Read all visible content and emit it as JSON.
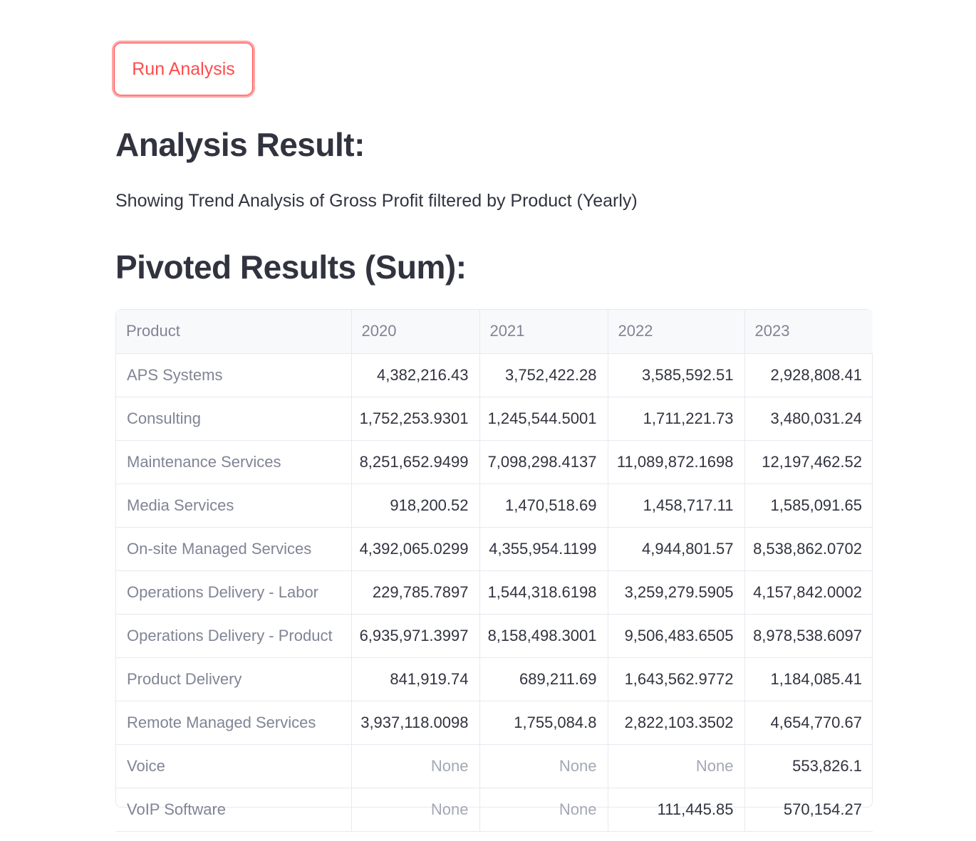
{
  "run_button": {
    "label": "Run Analysis"
  },
  "analysis": {
    "heading": "Analysis Result:",
    "description": "Showing Trend Analysis of Gross Profit filtered by Product (Yearly)"
  },
  "pivot": {
    "heading": "Pivoted Results (Sum):",
    "columns": [
      "Product",
      "2020",
      "2021",
      "2022",
      "2023"
    ],
    "rows": [
      [
        "APS Systems",
        "4,382,216.43",
        "3,752,422.28",
        "3,585,592.51",
        "2,928,808.41"
      ],
      [
        "Consulting",
        "1,752,253.9301",
        "1,245,544.5001",
        "1,711,221.73",
        "3,480,031.24"
      ],
      [
        "Maintenance Services",
        "8,251,652.9499",
        "7,098,298.4137",
        "11,089,872.1698",
        "12,197,462.52"
      ],
      [
        "Media Services",
        "918,200.52",
        "1,470,518.69",
        "1,458,717.11",
        "1,585,091.65"
      ],
      [
        "On-site Managed Services",
        "4,392,065.0299",
        "4,355,954.1199",
        "4,944,801.57",
        "8,538,862.0702"
      ],
      [
        "Operations Delivery - Labor",
        "229,785.7897",
        "1,544,318.6198",
        "3,259,279.5905",
        "4,157,842.0002"
      ],
      [
        "Operations Delivery - Product",
        "6,935,971.3997",
        "8,158,498.3001",
        "9,506,483.6505",
        "8,978,538.6097"
      ],
      [
        "Product Delivery",
        "841,919.74",
        "689,211.69",
        "1,643,562.9772",
        "1,184,085.41"
      ],
      [
        "Remote Managed Services",
        "3,937,118.0098",
        "1,755,084.8",
        "2,822,103.3502",
        "4,654,770.67"
      ],
      [
        "Voice",
        "None",
        "None",
        "None",
        "553,826.1"
      ],
      [
        "VoIP Software",
        "None",
        "None",
        "111,445.85",
        "570,154.27"
      ]
    ]
  }
}
